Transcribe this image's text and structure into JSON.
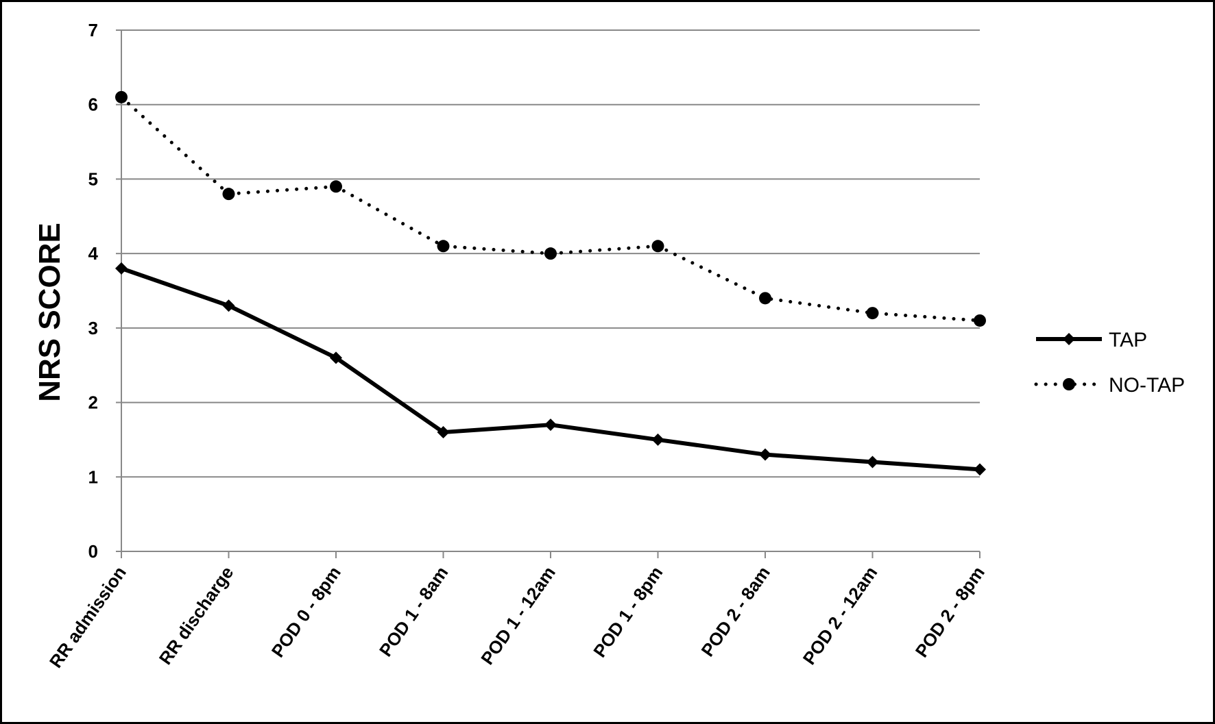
{
  "chart_data": {
    "type": "line",
    "title": "",
    "xlabel": "",
    "ylabel": "NRS SCORE",
    "ylim": [
      0,
      7
    ],
    "yticks": [
      "0",
      "1",
      "2",
      "3",
      "4",
      "5",
      "6",
      "7"
    ],
    "grid": true,
    "legend_position": "right",
    "categories": [
      "RR admission",
      "RR discharge",
      "POD 0 - 8pm",
      "POD 1 - 8am",
      "POD 1 - 12am",
      "POD 1 - 8pm",
      "POD 2 - 8am",
      "POD 2 - 12am",
      "POD 2 - 8pm"
    ],
    "series": [
      {
        "name": "TAP",
        "values": [
          3.8,
          3.3,
          2.6,
          1.6,
          1.7,
          1.5,
          1.3,
          1.2,
          1.1
        ],
        "line": "solid",
        "marker": "diamond",
        "color": "#000000"
      },
      {
        "name": "NO-TAP",
        "values": [
          6.1,
          4.8,
          4.9,
          4.1,
          4.0,
          4.1,
          3.4,
          3.2,
          3.1
        ],
        "line": "dotted",
        "marker": "circle",
        "color": "#000000"
      }
    ]
  }
}
